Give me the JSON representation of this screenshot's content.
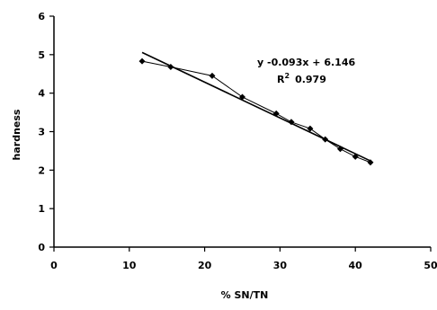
{
  "chart_data": {
    "type": "scatter",
    "xlabel": "% SN/TN",
    "ylabel": "hardness",
    "xlim": [
      0,
      50
    ],
    "ylim": [
      0,
      6
    ],
    "x_ticks": [
      0,
      10,
      20,
      30,
      40,
      50
    ],
    "y_ticks": [
      0,
      1,
      2,
      3,
      4,
      5,
      6
    ],
    "grid": false,
    "legend": "none",
    "series": [
      {
        "x": [
          11.7,
          15.5,
          21.0,
          25.0,
          29.5,
          31.5,
          34.0,
          36.0,
          38.0,
          40.0,
          42.0
        ],
        "y": [
          4.83,
          4.68,
          4.45,
          3.9,
          3.47,
          3.25,
          3.08,
          2.8,
          2.55,
          2.35,
          2.2
        ],
        "marker": "diamond",
        "color": "#000000"
      }
    ],
    "trendline": {
      "slope": -0.093,
      "intercept": 6.146,
      "x_range": [
        11.7,
        42.0
      ],
      "color": "#000000"
    },
    "annotations": {
      "equation": "y  -0.093x + 6.146",
      "r2_label": "R",
      "r2_sup": "2",
      "r2_value": "0.979"
    }
  }
}
